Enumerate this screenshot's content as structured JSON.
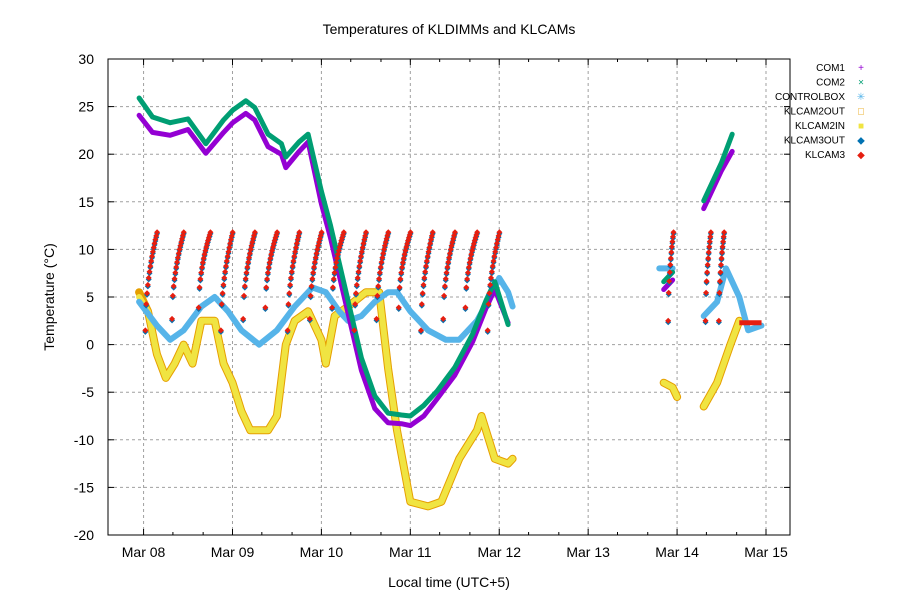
{
  "chart_data": {
    "type": "scatter",
    "title": "Temperatures of KLDIMMs and KLCAMs",
    "xlabel": "Local time (UTC+5)",
    "ylabel": "Temperature (°C)",
    "x_unit": "days since Mar 08 00:00",
    "xlim": [
      -0.4,
      7.27
    ],
    "ylim": [
      -20,
      30
    ],
    "grid": true,
    "legend_position": "top-right-outside",
    "yticks": [
      -20,
      -15,
      -10,
      -5,
      0,
      5,
      10,
      15,
      20,
      25,
      30
    ],
    "xticks": [
      {
        "x": 0,
        "label": "Mar 08"
      },
      {
        "x": 1,
        "label": "Mar 09"
      },
      {
        "x": 2,
        "label": "Mar 10"
      },
      {
        "x": 3,
        "label": "Mar 11"
      },
      {
        "x": 4,
        "label": "Mar 12"
      },
      {
        "x": 5,
        "label": "Mar 13"
      },
      {
        "x": 6,
        "label": "Mar 14"
      },
      {
        "x": 7,
        "label": "Mar 15"
      }
    ],
    "series": [
      {
        "name": "COM1",
        "color": "#9400d3",
        "marker": "plus",
        "segments": [
          [
            [
              -0.05,
              24.3
            ],
            [
              0.1,
              22.5
            ],
            [
              0.3,
              22.2
            ],
            [
              0.5,
              22.8
            ],
            [
              0.7,
              20.3
            ],
            [
              0.9,
              22.5
            ],
            [
              1.0,
              23.5
            ],
            [
              1.15,
              24.5
            ],
            [
              1.25,
              23.8
            ],
            [
              1.4,
              21.0
            ],
            [
              1.55,
              20.2
            ],
            [
              1.6,
              18.8
            ],
            [
              1.75,
              20.5
            ],
            [
              1.85,
              21.5
            ],
            [
              2.0,
              15.0
            ],
            [
              2.1,
              11.5
            ],
            [
              2.25,
              5.5
            ],
            [
              2.45,
              -2.5
            ],
            [
              2.6,
              -6.5
            ],
            [
              2.75,
              -8.0
            ],
            [
              2.9,
              -8.1
            ],
            [
              3.0,
              -8.3
            ],
            [
              3.15,
              -7.3
            ],
            [
              3.3,
              -5.5
            ],
            [
              3.5,
              -3.0
            ],
            [
              3.7,
              0.5
            ],
            [
              3.85,
              4.0
            ],
            [
              3.95,
              6.0
            ],
            [
              4.1,
              2.5
            ]
          ],
          [
            [
              5.85,
              6.0
            ],
            [
              5.95,
              7.0
            ]
          ],
          [
            [
              6.3,
              14.5
            ],
            [
              6.5,
              18.5
            ],
            [
              6.62,
              20.5
            ]
          ]
        ]
      },
      {
        "name": "COM2",
        "color": "#009e73",
        "marker": "cross",
        "segments": [
          [
            [
              -0.05,
              25.8
            ],
            [
              0.1,
              23.8
            ],
            [
              0.3,
              23.2
            ],
            [
              0.5,
              23.6
            ],
            [
              0.7,
              21.0
            ],
            [
              0.9,
              23.5
            ],
            [
              1.0,
              24.5
            ],
            [
              1.15,
              25.5
            ],
            [
              1.25,
              24.8
            ],
            [
              1.4,
              22.0
            ],
            [
              1.55,
              21.0
            ],
            [
              1.6,
              19.6
            ],
            [
              1.75,
              21.2
            ],
            [
              1.85,
              22.0
            ],
            [
              2.0,
              16.0
            ],
            [
              2.1,
              12.5
            ],
            [
              2.25,
              6.5
            ],
            [
              2.45,
              -1.5
            ],
            [
              2.6,
              -5.5
            ],
            [
              2.75,
              -7.3
            ],
            [
              2.9,
              -7.5
            ],
            [
              3.0,
              -7.6
            ],
            [
              3.15,
              -6.5
            ],
            [
              3.3,
              -5.0
            ],
            [
              3.5,
              -2.5
            ],
            [
              3.7,
              1.0
            ],
            [
              3.85,
              4.5
            ],
            [
              3.95,
              6.5
            ],
            [
              4.1,
              2.0
            ]
          ],
          [
            [
              5.85,
              6.5
            ],
            [
              5.95,
              7.5
            ]
          ],
          [
            [
              6.3,
              15.0
            ],
            [
              6.5,
              19.0
            ],
            [
              6.62,
              22.0
            ]
          ]
        ]
      },
      {
        "name": "CONTROLBOX",
        "color": "#56b4e9",
        "marker": "star",
        "segments": [
          [
            [
              -0.05,
              4.5
            ],
            [
              0.15,
              2.0
            ],
            [
              0.3,
              0.5
            ],
            [
              0.45,
              1.5
            ],
            [
              0.65,
              4.0
            ],
            [
              0.8,
              5.0
            ],
            [
              0.95,
              3.5
            ],
            [
              1.1,
              1.5
            ],
            [
              1.3,
              0.0
            ],
            [
              1.5,
              1.5
            ],
            [
              1.7,
              4.0
            ],
            [
              1.9,
              6.0
            ],
            [
              2.05,
              5.5
            ],
            [
              2.2,
              3.5
            ],
            [
              2.3,
              2.5
            ],
            [
              2.45,
              3.0
            ],
            [
              2.6,
              4.5
            ],
            [
              2.75,
              5.5
            ],
            [
              2.85,
              5.5
            ],
            [
              3.0,
              3.5
            ],
            [
              3.2,
              1.5
            ],
            [
              3.4,
              0.5
            ],
            [
              3.55,
              0.5
            ],
            [
              3.75,
              2.5
            ],
            [
              3.9,
              5.0
            ],
            [
              4.0,
              7.0
            ],
            [
              4.1,
              5.5
            ],
            [
              4.15,
              4.0
            ]
          ],
          [
            [
              5.8,
              8.0
            ],
            [
              5.95,
              8.0
            ]
          ],
          [
            [
              6.3,
              3.0
            ],
            [
              6.45,
              4.5
            ],
            [
              6.55,
              8.0
            ],
            [
              6.7,
              5.0
            ],
            [
              6.8,
              1.5
            ],
            [
              6.95,
              2.0
            ]
          ]
        ]
      },
      {
        "name": "KLCAM2OUT",
        "color": "#e69f00",
        "marker": "square",
        "segments": [
          [
            [
              -0.05,
              5.5
            ],
            [
              0.05,
              3.5
            ],
            [
              0.15,
              -1.0
            ],
            [
              0.25,
              -3.5
            ],
            [
              0.35,
              -2.0
            ],
            [
              0.45,
              0.0
            ],
            [
              0.55,
              -2.0
            ],
            [
              0.65,
              2.5
            ],
            [
              0.8,
              2.5
            ],
            [
              0.9,
              -2.0
            ],
            [
              1.0,
              -4.0
            ],
            [
              1.1,
              -7.0
            ],
            [
              1.2,
              -9.0
            ],
            [
              1.4,
              -9.0
            ],
            [
              1.5,
              -7.5
            ],
            [
              1.6,
              0.0
            ],
            [
              1.7,
              2.5
            ],
            [
              1.85,
              3.5
            ],
            [
              2.0,
              0.5
            ],
            [
              2.05,
              -2.0
            ],
            [
              2.15,
              3.0
            ],
            [
              2.3,
              4.0
            ],
            [
              2.5,
              5.5
            ],
            [
              2.65,
              5.5
            ],
            [
              2.75,
              -2.5
            ],
            [
              2.85,
              -9.0
            ],
            [
              3.0,
              -16.5
            ],
            [
              3.2,
              -17.0
            ],
            [
              3.35,
              -16.5
            ],
            [
              3.55,
              -12.0
            ],
            [
              3.75,
              -9.0
            ],
            [
              3.8,
              -7.5
            ],
            [
              3.95,
              -12.0
            ],
            [
              4.1,
              -12.5
            ],
            [
              4.15,
              -12.0
            ]
          ],
          [
            [
              5.85,
              -4.0
            ],
            [
              5.95,
              -4.5
            ],
            [
              6.0,
              -5.5
            ]
          ],
          [
            [
              6.3,
              -6.5
            ],
            [
              6.45,
              -4.0
            ],
            [
              6.6,
              0.0
            ],
            [
              6.7,
              2.5
            ]
          ]
        ]
      },
      {
        "name": "KLCAM2IN",
        "color": "#f0e442",
        "marker": "filled-square",
        "segments": [
          [
            [
              -0.05,
              5.0
            ],
            [
              0.05,
              3.5
            ],
            [
              0.15,
              -1.0
            ],
            [
              0.25,
              -3.5
            ],
            [
              0.35,
              -2.0
            ],
            [
              0.45,
              0.0
            ],
            [
              0.55,
              -2.0
            ],
            [
              0.65,
              2.5
            ],
            [
              0.8,
              2.5
            ],
            [
              0.9,
              -2.0
            ],
            [
              1.0,
              -4.0
            ],
            [
              1.1,
              -7.0
            ],
            [
              1.2,
              -9.0
            ],
            [
              1.4,
              -9.0
            ],
            [
              1.5,
              -7.5
            ],
            [
              1.6,
              0.0
            ],
            [
              1.7,
              2.5
            ],
            [
              1.85,
              3.5
            ],
            [
              2.0,
              0.5
            ],
            [
              2.05,
              -2.0
            ],
            [
              2.15,
              3.0
            ],
            [
              2.3,
              4.0
            ],
            [
              2.5,
              5.5
            ],
            [
              2.65,
              5.5
            ],
            [
              2.75,
              -2.5
            ],
            [
              2.85,
              -9.0
            ],
            [
              3.0,
              -16.5
            ],
            [
              3.2,
              -17.0
            ],
            [
              3.35,
              -16.5
            ],
            [
              3.55,
              -12.0
            ],
            [
              3.75,
              -9.0
            ],
            [
              3.8,
              -7.5
            ],
            [
              3.95,
              -12.0
            ],
            [
              4.1,
              -12.5
            ],
            [
              4.15,
              -12.0
            ]
          ],
          [
            [
              5.85,
              -4.0
            ],
            [
              5.95,
              -4.5
            ],
            [
              6.0,
              -5.5
            ]
          ],
          [
            [
              6.3,
              -6.5
            ],
            [
              6.45,
              -4.0
            ],
            [
              6.6,
              0.0
            ],
            [
              6.7,
              2.5
            ]
          ]
        ]
      },
      {
        "name": "KLCAM3OUT",
        "color": "#0072b2",
        "marker": "diamond",
        "cycle": {
          "min": 1.0,
          "max": 12.0
        }
      },
      {
        "name": "KLCAM3",
        "color": "#e51e10",
        "marker": "filled-diamond",
        "cycle": {
          "min": 1.5,
          "max": 12.0
        },
        "flat": [
          [
            6.7,
            2.3
          ],
          [
            6.95,
            2.3
          ]
        ]
      }
    ],
    "klcam_cycles": {
      "description": "sawtooth rise events (start days) for KLCAM3/KLCAM3OUT",
      "starts": [
        0.0,
        0.3,
        0.6,
        0.85,
        1.1,
        1.35,
        1.6,
        1.85,
        2.1,
        2.35,
        2.6,
        2.85,
        3.1,
        3.35,
        3.6,
        3.85
      ],
      "extra": [
        5.88,
        6.3,
        6.45
      ]
    }
  }
}
